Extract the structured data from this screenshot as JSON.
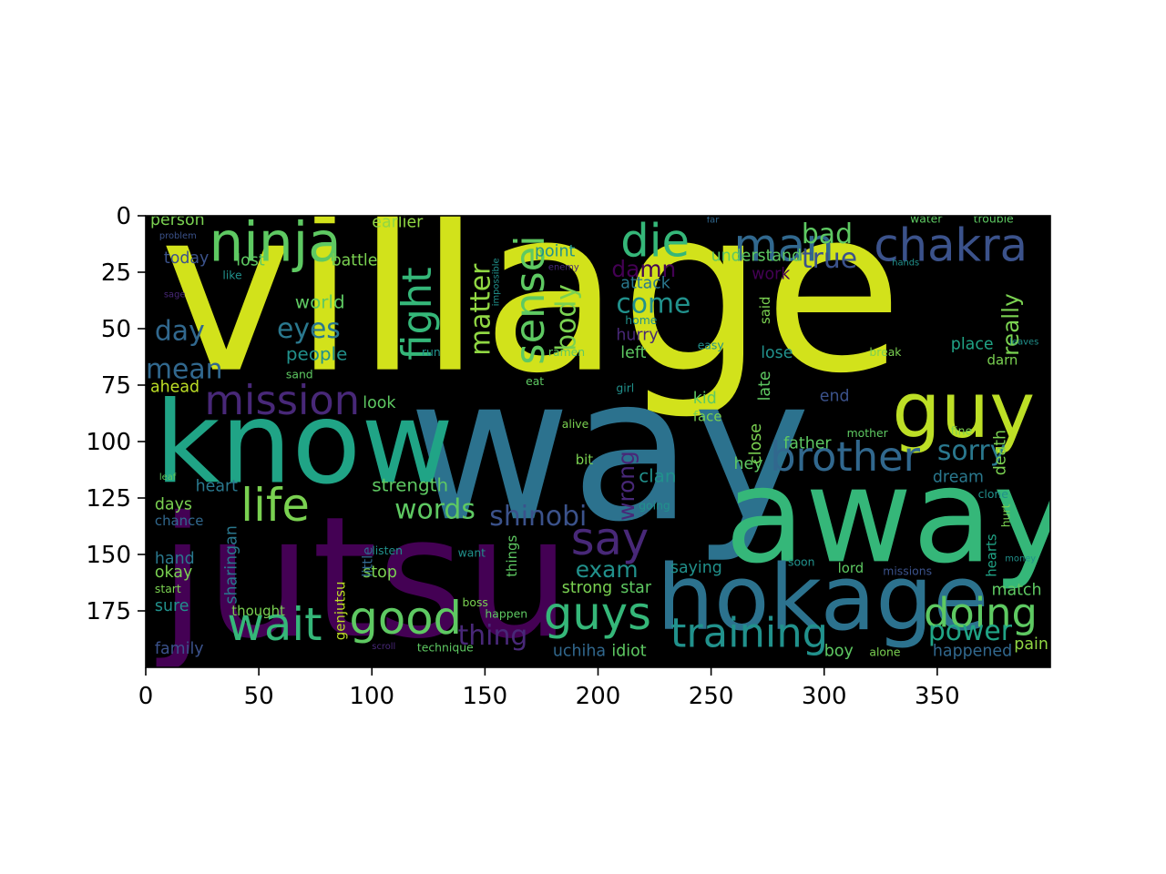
{
  "chart_data": {
    "type": "wordcloud",
    "title": "",
    "xlabel": "",
    "ylabel": "",
    "background": "#000000",
    "xlim": [
      0,
      400
    ],
    "ylim": [
      200,
      0
    ],
    "xticks": [
      0,
      50,
      100,
      150,
      200,
      250,
      300,
      350
    ],
    "yticks": [
      0,
      25,
      50,
      75,
      100,
      125,
      150,
      175
    ],
    "words": [
      {
        "text": "village",
        "x": 6,
        "y": 68,
        "size": 100,
        "color": "#d2e21b",
        "rotate": 0
      },
      {
        "text": "way",
        "x": 116,
        "y": 134,
        "size": 88,
        "color": "#2c728e",
        "rotate": 0
      },
      {
        "text": "jutsu",
        "x": 6,
        "y": 186,
        "size": 74,
        "color": "#440154",
        "rotate": 0
      },
      {
        "text": "away",
        "x": 256,
        "y": 153,
        "size": 58,
        "color": "#35b779",
        "rotate": 0
      },
      {
        "text": "hokage",
        "x": 226,
        "y": 183,
        "size": 40,
        "color": "#2c728e",
        "rotate": 0
      },
      {
        "text": "know",
        "x": 4,
        "y": 118,
        "size": 50,
        "color": "#20a486",
        "rotate": 0
      },
      {
        "text": "guy",
        "x": 330,
        "y": 98,
        "size": 34,
        "color": "#bddf26",
        "rotate": 0
      },
      {
        "text": "ninja",
        "x": 28,
        "y": 20,
        "size": 24,
        "color": "#5ec962",
        "rotate": 0
      },
      {
        "text": "chakra",
        "x": 322,
        "y": 20,
        "size": 20,
        "color": "#3b528b",
        "rotate": 0
      },
      {
        "text": "man",
        "x": 260,
        "y": 20,
        "size": 20,
        "color": "#31688e",
        "rotate": 0
      },
      {
        "text": "die",
        "x": 210,
        "y": 18,
        "size": 20,
        "color": "#35b779",
        "rotate": 0
      },
      {
        "text": "mission",
        "x": 26,
        "y": 88,
        "size": 18,
        "color": "#482878",
        "rotate": 0
      },
      {
        "text": "life",
        "x": 42,
        "y": 135,
        "size": 20,
        "color": "#7ad151",
        "rotate": 0
      },
      {
        "text": "wait",
        "x": 36,
        "y": 188,
        "size": 20,
        "color": "#35b779",
        "rotate": 0
      },
      {
        "text": "good",
        "x": 90,
        "y": 185,
        "size": 20,
        "color": "#5ec962",
        "rotate": 0
      },
      {
        "text": "guys",
        "x": 176,
        "y": 183,
        "size": 20,
        "color": "#35b779",
        "rotate": 0
      },
      {
        "text": "training",
        "x": 232,
        "y": 191,
        "size": 18,
        "color": "#21918c",
        "rotate": 0
      },
      {
        "text": "brother",
        "x": 276,
        "y": 113,
        "size": 18,
        "color": "#31688e",
        "rotate": 0
      },
      {
        "text": "doing",
        "x": 344,
        "y": 182,
        "size": 18,
        "color": "#5ec962",
        "rotate": 0
      },
      {
        "text": "say",
        "x": 188,
        "y": 150,
        "size": 20,
        "color": "#482878",
        "rotate": 0
      },
      {
        "text": "fight",
        "x": 126,
        "y": 64,
        "size": 18,
        "color": "#35b779",
        "rotate": -90
      },
      {
        "text": "sensei",
        "x": 176,
        "y": 66,
        "size": 18,
        "color": "#5ec962",
        "rotate": -90
      },
      {
        "text": "matter",
        "x": 152,
        "y": 62,
        "size": 12,
        "color": "#90d743",
        "rotate": -90
      },
      {
        "text": "body",
        "x": 190,
        "y": 60,
        "size": 12,
        "color": "#7ad151",
        "rotate": -90
      },
      {
        "text": "eyes",
        "x": 58,
        "y": 54,
        "size": 12,
        "color": "#2a788e",
        "rotate": 0
      },
      {
        "text": "day",
        "x": 4,
        "y": 55,
        "size": 12,
        "color": "#31688e",
        "rotate": 0
      },
      {
        "text": "mean",
        "x": 0,
        "y": 72,
        "size": 12,
        "color": "#31688e",
        "rotate": 0
      },
      {
        "text": "bad",
        "x": 290,
        "y": 12,
        "size": 12,
        "color": "#5ec962",
        "rotate": 0
      },
      {
        "text": "true",
        "x": 290,
        "y": 23,
        "size": 12,
        "color": "#3b528b",
        "rotate": 0
      },
      {
        "text": "damn",
        "x": 206,
        "y": 27,
        "size": 10,
        "color": "#440154",
        "rotate": 0
      },
      {
        "text": "come",
        "x": 208,
        "y": 43,
        "size": 12,
        "color": "#21918c",
        "rotate": 0
      },
      {
        "text": "really",
        "x": 386,
        "y": 62,
        "size": 10,
        "color": "#7ad151",
        "rotate": -90
      },
      {
        "text": "sorry",
        "x": 350,
        "y": 108,
        "size": 12,
        "color": "#2a788e",
        "rotate": 0
      },
      {
        "text": "shinobi",
        "x": 152,
        "y": 137,
        "size": 12,
        "color": "#3b528b",
        "rotate": 0
      },
      {
        "text": "words",
        "x": 110,
        "y": 134,
        "size": 12,
        "color": "#5ec962",
        "rotate": 0
      },
      {
        "text": "wrong",
        "x": 216,
        "y": 135,
        "size": 10,
        "color": "#482878",
        "rotate": -90
      },
      {
        "text": "exam",
        "x": 190,
        "y": 160,
        "size": 10,
        "color": "#21918c",
        "rotate": 0
      },
      {
        "text": "thing",
        "x": 138,
        "y": 190,
        "size": 12,
        "color": "#482878",
        "rotate": 0
      },
      {
        "text": "power",
        "x": 346,
        "y": 188,
        "size": 12,
        "color": "#20a486",
        "rotate": 0
      },
      {
        "text": "clan",
        "x": 218,
        "y": 118,
        "size": 8,
        "color": "#21918c",
        "rotate": 0
      },
      {
        "text": "hey",
        "x": 260,
        "y": 112,
        "size": 7,
        "color": "#5ec962",
        "rotate": 0
      },
      {
        "text": "uchiha",
        "x": 180,
        "y": 195,
        "size": 7,
        "color": "#31688e",
        "rotate": 0
      },
      {
        "text": "idiot",
        "x": 206,
        "y": 195,
        "size": 7,
        "color": "#5ec962",
        "rotate": 0
      },
      {
        "text": "boy",
        "x": 300,
        "y": 195,
        "size": 7,
        "color": "#5ec962",
        "rotate": 0
      },
      {
        "text": "happened",
        "x": 348,
        "y": 195,
        "size": 7,
        "color": "#31688e",
        "rotate": 0
      },
      {
        "text": "pain",
        "x": 384,
        "y": 192,
        "size": 7,
        "color": "#90d743",
        "rotate": 0
      },
      {
        "text": "family",
        "x": 4,
        "y": 194,
        "size": 7,
        "color": "#3b528b",
        "rotate": 0
      },
      {
        "text": "sure",
        "x": 4,
        "y": 175,
        "size": 7,
        "color": "#21918c",
        "rotate": 0
      },
      {
        "text": "okay",
        "x": 4,
        "y": 160,
        "size": 7,
        "color": "#7ad151",
        "rotate": 0
      },
      {
        "text": "hand",
        "x": 4,
        "y": 154,
        "size": 7,
        "color": "#2a788e",
        "rotate": 0
      },
      {
        "text": "days",
        "x": 4,
        "y": 130,
        "size": 7,
        "color": "#7ad151",
        "rotate": 0
      },
      {
        "text": "chance",
        "x": 4,
        "y": 137,
        "size": 6,
        "color": "#31688e",
        "rotate": 0
      },
      {
        "text": "heart",
        "x": 22,
        "y": 122,
        "size": 7,
        "color": "#2a788e",
        "rotate": 0
      },
      {
        "text": "strength",
        "x": 100,
        "y": 122,
        "size": 8,
        "color": "#5ec962",
        "rotate": 0
      },
      {
        "text": "people",
        "x": 62,
        "y": 64,
        "size": 8,
        "color": "#21918c",
        "rotate": 0
      },
      {
        "text": "world",
        "x": 66,
        "y": 41,
        "size": 8,
        "color": "#5ec962",
        "rotate": 0
      },
      {
        "text": "battle",
        "x": 82,
        "y": 22,
        "size": 7,
        "color": "#7ad151",
        "rotate": 0
      },
      {
        "text": "lost",
        "x": 40,
        "y": 22,
        "size": 7,
        "color": "#5ec962",
        "rotate": 0
      },
      {
        "text": "today",
        "x": 8,
        "y": 21,
        "size": 7,
        "color": "#3b528b",
        "rotate": 0
      },
      {
        "text": "person",
        "x": 2,
        "y": 4,
        "size": 7,
        "color": "#7ad151",
        "rotate": 0
      },
      {
        "text": "earlier",
        "x": 100,
        "y": 5,
        "size": 7,
        "color": "#90d743",
        "rotate": 0
      },
      {
        "text": "point",
        "x": 172,
        "y": 18,
        "size": 7,
        "color": "#21918c",
        "rotate": 0
      },
      {
        "text": "attack",
        "x": 210,
        "y": 32,
        "size": 7,
        "color": "#2a788e",
        "rotate": 0
      },
      {
        "text": "understand",
        "x": 250,
        "y": 20,
        "size": 7,
        "color": "#5ec962",
        "rotate": 0
      },
      {
        "text": "work",
        "x": 268,
        "y": 28,
        "size": 7,
        "color": "#440154",
        "rotate": 0
      },
      {
        "text": "hurry",
        "x": 208,
        "y": 55,
        "size": 7,
        "color": "#482878",
        "rotate": 0
      },
      {
        "text": "left",
        "x": 210,
        "y": 63,
        "size": 7,
        "color": "#5ec962",
        "rotate": 0
      },
      {
        "text": "lose",
        "x": 272,
        "y": 63,
        "size": 7,
        "color": "#21918c",
        "rotate": 0
      },
      {
        "text": "place",
        "x": 356,
        "y": 59,
        "size": 7,
        "color": "#20a486",
        "rotate": 0
      },
      {
        "text": "look",
        "x": 96,
        "y": 85,
        "size": 7,
        "color": "#5ec962",
        "rotate": 0
      },
      {
        "text": "kid",
        "x": 242,
        "y": 83,
        "size": 7,
        "color": "#5ec962",
        "rotate": 0
      },
      {
        "text": "face",
        "x": 242,
        "y": 91,
        "size": 6,
        "color": "#7ad151",
        "rotate": 0
      },
      {
        "text": "end",
        "x": 298,
        "y": 82,
        "size": 7,
        "color": "#3b528b",
        "rotate": 0
      },
      {
        "text": "father",
        "x": 282,
        "y": 103,
        "size": 7,
        "color": "#5ec962",
        "rotate": 0
      },
      {
        "text": "dream",
        "x": 348,
        "y": 118,
        "size": 7,
        "color": "#2a788e",
        "rotate": 0
      },
      {
        "text": "death",
        "x": 380,
        "y": 115,
        "size": 7,
        "color": "#7ad151",
        "rotate": -90
      },
      {
        "text": "match",
        "x": 374,
        "y": 168,
        "size": 7,
        "color": "#5ec962",
        "rotate": 0
      },
      {
        "text": "star",
        "x": 210,
        "y": 167,
        "size": 7,
        "color": "#5ec962",
        "rotate": 0
      },
      {
        "text": "stop",
        "x": 96,
        "y": 160,
        "size": 7,
        "color": "#7ad151",
        "rotate": 0
      },
      {
        "text": "strong",
        "x": 184,
        "y": 167,
        "size": 7,
        "color": "#7ad151",
        "rotate": 0
      },
      {
        "text": "saying",
        "x": 232,
        "y": 158,
        "size": 7,
        "color": "#21918c",
        "rotate": 0
      },
      {
        "text": "lord",
        "x": 306,
        "y": 158,
        "size": 6,
        "color": "#5ec962",
        "rotate": 0
      },
      {
        "text": "sharingan",
        "x": 40,
        "y": 172,
        "size": 7,
        "color": "#2a788e",
        "rotate": -90
      },
      {
        "text": "genjutsu",
        "x": 88,
        "y": 188,
        "size": 6,
        "color": "#bddf26",
        "rotate": -90
      },
      {
        "text": "thought",
        "x": 38,
        "y": 177,
        "size": 6,
        "color": "#7ad151",
        "rotate": 0
      },
      {
        "text": "close",
        "x": 272,
        "y": 110,
        "size": 7,
        "color": "#7ad151",
        "rotate": -90
      },
      {
        "text": "late",
        "x": 276,
        "y": 82,
        "size": 7,
        "color": "#5ec962",
        "rotate": -90
      },
      {
        "text": "ahead",
        "x": 2,
        "y": 78,
        "size": 7,
        "color": "#bddf26",
        "rotate": 0
      },
      {
        "text": "said",
        "x": 276,
        "y": 48,
        "size": 6,
        "color": "#7ad151",
        "rotate": -90
      },
      {
        "text": "darn",
        "x": 372,
        "y": 66,
        "size": 6,
        "color": "#7ad151",
        "rotate": 0
      },
      {
        "text": "hearts",
        "x": 376,
        "y": 160,
        "size": 6,
        "color": "#20a486",
        "rotate": -90
      },
      {
        "text": "things",
        "x": 164,
        "y": 160,
        "size": 6,
        "color": "#5ec962",
        "rotate": -90
      },
      {
        "text": "little",
        "x": 100,
        "y": 160,
        "size": 6,
        "color": "#31688e",
        "rotate": -90
      },
      {
        "text": "bit",
        "x": 190,
        "y": 110,
        "size": 6,
        "color": "#7ad151",
        "rotate": 0
      },
      {
        "text": "alive",
        "x": 184,
        "y": 94,
        "size": 5,
        "color": "#7ad151",
        "rotate": 0
      },
      {
        "text": "girl",
        "x": 208,
        "y": 78,
        "size": 5,
        "color": "#21918c",
        "rotate": 0
      },
      {
        "text": "eat",
        "x": 168,
        "y": 75,
        "size": 5,
        "color": "#5ec962",
        "rotate": 0
      },
      {
        "text": "ramen",
        "x": 178,
        "y": 62,
        "size": 5,
        "color": "#5ec962",
        "rotate": 0
      },
      {
        "text": "home",
        "x": 212,
        "y": 48,
        "size": 5,
        "color": "#21918c",
        "rotate": 0
      },
      {
        "text": "run",
        "x": 122,
        "y": 62,
        "size": 5,
        "color": "#21918c",
        "rotate": 0
      },
      {
        "text": "sand",
        "x": 62,
        "y": 72,
        "size": 5,
        "color": "#5ec962",
        "rotate": 0
      },
      {
        "text": "like",
        "x": 34,
        "y": 28,
        "size": 5,
        "color": "#21918c",
        "rotate": 0
      },
      {
        "text": "start",
        "x": 4,
        "y": 167,
        "size": 5,
        "color": "#7ad151",
        "rotate": 0
      },
      {
        "text": "listen",
        "x": 100,
        "y": 150,
        "size": 5,
        "color": "#21918c",
        "rotate": 0
      },
      {
        "text": "want",
        "x": 138,
        "y": 151,
        "size": 5,
        "color": "#21918c",
        "rotate": 0
      },
      {
        "text": "happen",
        "x": 150,
        "y": 178,
        "size": 5,
        "color": "#5ec962",
        "rotate": 0
      },
      {
        "text": "boss",
        "x": 140,
        "y": 173,
        "size": 5,
        "color": "#7ad151",
        "rotate": 0
      },
      {
        "text": "technique",
        "x": 120,
        "y": 193,
        "size": 5,
        "color": "#5ec962",
        "rotate": 0
      },
      {
        "text": "going",
        "x": 218,
        "y": 130,
        "size": 5,
        "color": "#21918c",
        "rotate": 0
      },
      {
        "text": "soon",
        "x": 284,
        "y": 155,
        "size": 5,
        "color": "#21918c",
        "rotate": 0
      },
      {
        "text": "missions",
        "x": 326,
        "y": 159,
        "size": 5,
        "color": "#3b528b",
        "rotate": 0
      },
      {
        "text": "fine",
        "x": 356,
        "y": 97,
        "size": 5,
        "color": "#7ad151",
        "rotate": 0
      },
      {
        "text": "clone",
        "x": 368,
        "y": 125,
        "size": 5,
        "color": "#21918c",
        "rotate": 0
      },
      {
        "text": "hurt",
        "x": 382,
        "y": 138,
        "size": 5,
        "color": "#7ad151",
        "rotate": -90
      },
      {
        "text": "money",
        "x": 380,
        "y": 153,
        "size": 4,
        "color": "#21918c",
        "rotate": 0
      },
      {
        "text": "mother",
        "x": 310,
        "y": 98,
        "size": 5,
        "color": "#5ec962",
        "rotate": 0
      },
      {
        "text": "alone",
        "x": 320,
        "y": 195,
        "size": 5,
        "color": "#7ad151",
        "rotate": 0
      },
      {
        "text": "break",
        "x": 320,
        "y": 62,
        "size": 5,
        "color": "#7ad151",
        "rotate": 0
      },
      {
        "text": "leaves",
        "x": 382,
        "y": 57,
        "size": 4,
        "color": "#21918c",
        "rotate": 0
      },
      {
        "text": "easy",
        "x": 244,
        "y": 59,
        "size": 5,
        "color": "#21918c",
        "rotate": 0
      },
      {
        "text": "enemy",
        "x": 178,
        "y": 24,
        "size": 4,
        "color": "#482878",
        "rotate": 0
      },
      {
        "text": "water",
        "x": 338,
        "y": 3,
        "size": 5,
        "color": "#5ec962",
        "rotate": 0
      },
      {
        "text": "trouble",
        "x": 366,
        "y": 3,
        "size": 5,
        "color": "#5ec962",
        "rotate": 0
      },
      {
        "text": "far",
        "x": 248,
        "y": 3,
        "size": 4,
        "color": "#31688e",
        "rotate": 0
      },
      {
        "text": "hands",
        "x": 330,
        "y": 22,
        "size": 4,
        "color": "#21918c",
        "rotate": 0
      },
      {
        "text": "problem",
        "x": 6,
        "y": 10,
        "size": 4,
        "color": "#3b528b",
        "rotate": 0
      },
      {
        "text": "sage",
        "x": 8,
        "y": 36,
        "size": 4,
        "color": "#482878",
        "rotate": 0
      },
      {
        "text": "leaf",
        "x": 6,
        "y": 117,
        "size": 4,
        "color": "#5ec962",
        "rotate": 0
      },
      {
        "text": "scroll",
        "x": 100,
        "y": 192,
        "size": 4,
        "color": "#482878",
        "rotate": 0
      },
      {
        "text": "impossible",
        "x": 156,
        "y": 40,
        "size": 4,
        "color": "#21918c",
        "rotate": -90
      }
    ]
  }
}
